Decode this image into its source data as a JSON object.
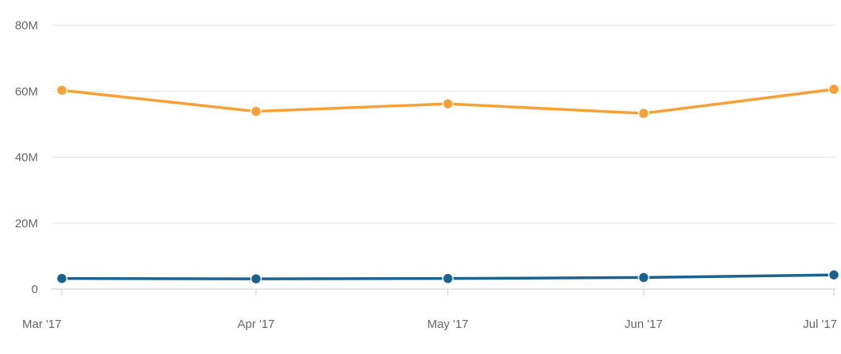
{
  "chart_data": {
    "type": "line",
    "title": "",
    "xlabel": "",
    "ylabel": "",
    "categories": [
      "Mar '17",
      "Apr '17",
      "May '17",
      "Jun '17",
      "Jul '17"
    ],
    "y_ticks": [
      "0",
      "20M",
      "40M",
      "60M",
      "80M"
    ],
    "y_tick_values": [
      0,
      20000000,
      40000000,
      60000000,
      80000000
    ],
    "ylim": [
      0,
      80000000
    ],
    "grid": true,
    "legend": "none",
    "series": [
      {
        "color": "#f7a035",
        "values": [
          60300000,
          53900000,
          56200000,
          53300000,
          60600000
        ]
      },
      {
        "color": "#1a6391",
        "values": [
          3200000,
          3100000,
          3200000,
          3500000,
          4300000
        ]
      }
    ]
  }
}
